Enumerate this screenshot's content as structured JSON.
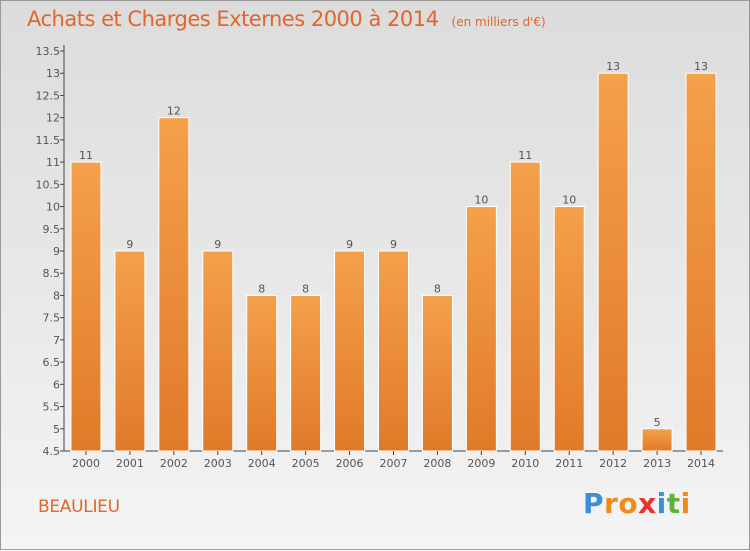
{
  "chart_data": {
    "type": "bar",
    "title": "Achats et Charges Externes 2000 à 2014",
    "subtitle": "(en milliers d'€)",
    "categories": [
      "2000",
      "2001",
      "2002",
      "2003",
      "2004",
      "2005",
      "2006",
      "2007",
      "2008",
      "2009",
      "2010",
      "2011",
      "2012",
      "2013",
      "2014"
    ],
    "values": [
      11,
      9,
      12,
      9,
      8,
      8,
      9,
      9,
      8,
      10,
      11,
      10,
      13,
      5,
      13
    ],
    "y_ticks": [
      "4.5",
      "5",
      "5.5",
      "6",
      "6.5",
      "7",
      "7.5",
      "8",
      "8.5",
      "9",
      "9.5",
      "10",
      "10.5",
      "11",
      "11.5",
      "12",
      "12.5",
      "13",
      "13.5"
    ],
    "ylim": [
      4.5,
      13.5
    ],
    "grid": false,
    "bar_color": "#f5a04a",
    "bar_color_dark": "#e07a28"
  },
  "footer": {
    "place": "BEAULIEU",
    "logo_letters": [
      "P",
      "r",
      "o",
      "x",
      "i",
      "t",
      "i"
    ],
    "logo_colors": [
      "#3a8fd6",
      "#f08a1c",
      "#f08a1c",
      "#e8322a",
      "#3a8fd6",
      "#5fb33a",
      "#f08a1c"
    ]
  },
  "colors": {
    "accent": "#e0662a",
    "axis": "#444444",
    "text": "#555555"
  }
}
